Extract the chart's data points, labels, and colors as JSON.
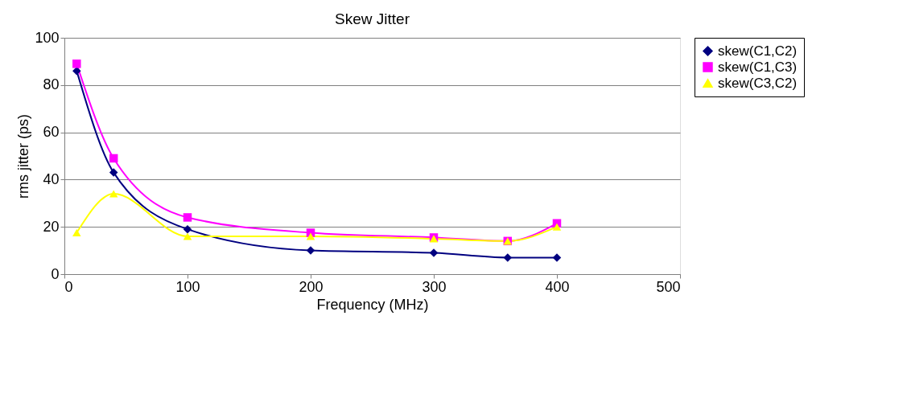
{
  "chart_data": {
    "type": "line",
    "title": "Skew Jitter",
    "xlabel": "Frequency (MHz)",
    "ylabel": "rms jitter (ps)",
    "x": [
      10,
      40,
      100,
      200,
      300,
      360,
      400
    ],
    "series": [
      {
        "name": "skew(C1,C2)",
        "color": "#000080",
        "marker": "diamond",
        "values": [
          86,
          43,
          19,
          10,
          9,
          7,
          7
        ]
      },
      {
        "name": "skew(C1,C3)",
        "color": "#ff00ff",
        "marker": "square",
        "values": [
          89,
          49,
          24,
          17.5,
          15.5,
          14,
          21.5
        ]
      },
      {
        "name": "skew(C3,C2)",
        "color": "#ffff00",
        "marker": "triangle",
        "values": [
          17.5,
          34,
          16,
          16,
          15,
          14,
          20
        ]
      }
    ],
    "xlim": [
      0,
      500
    ],
    "xticks": [
      0,
      100,
      200,
      300,
      400,
      500
    ],
    "ylim": [
      0,
      100
    ],
    "yticks": [
      0,
      20,
      40,
      60,
      80,
      100
    ],
    "grid": "y",
    "legend": "right",
    "line_style": "solid"
  }
}
